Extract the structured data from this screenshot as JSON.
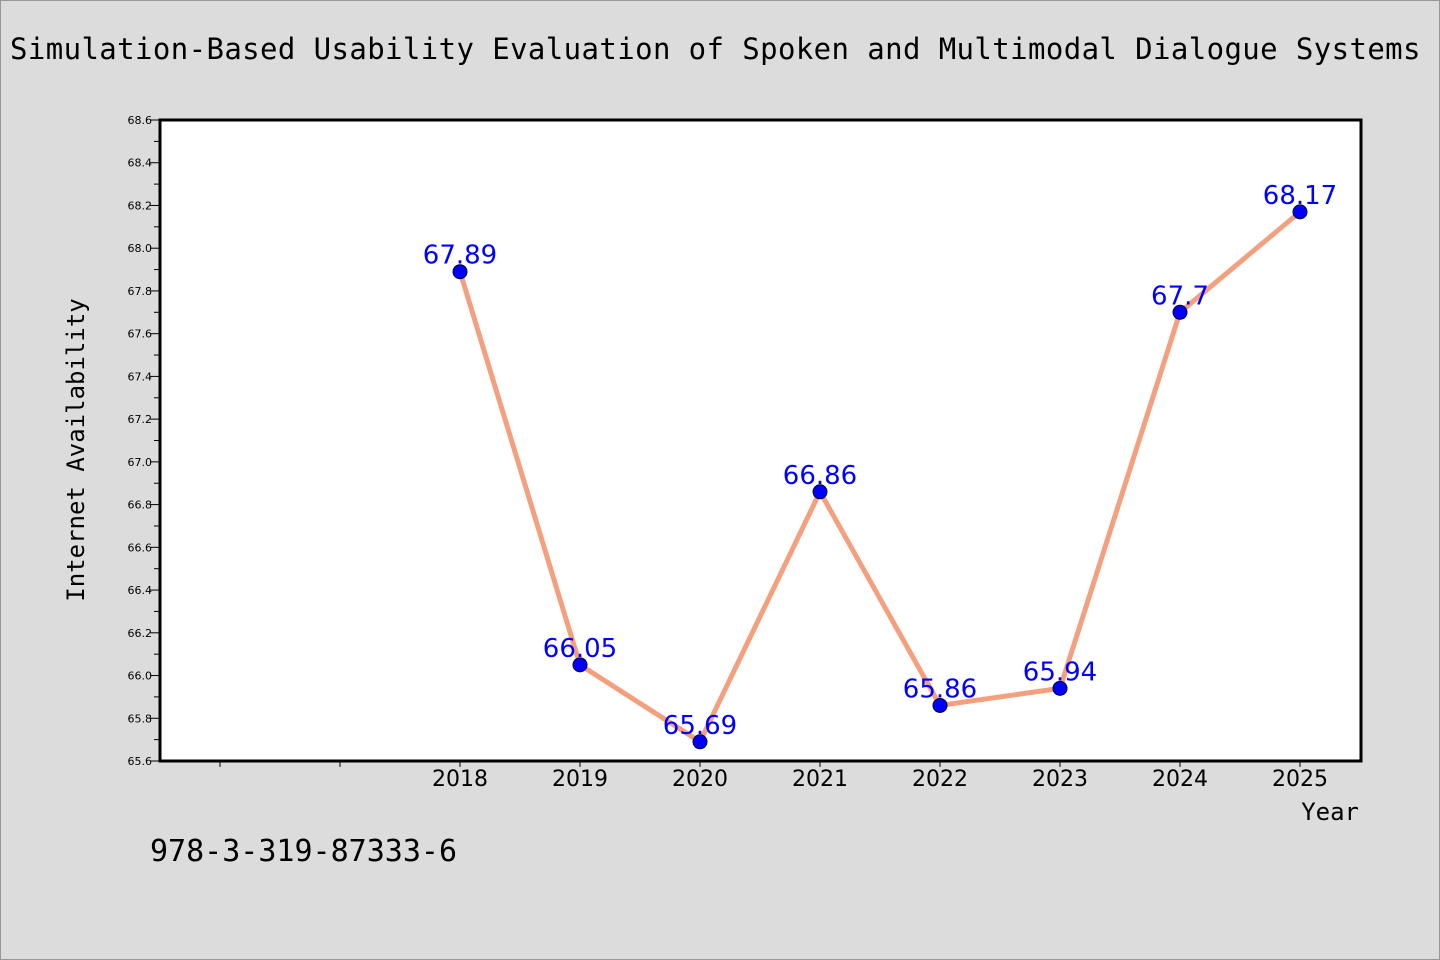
{
  "chart_data": {
    "type": "line",
    "title": "Simulation-Based Usability Evaluation of Spoken and Multimodal Dialogue Systems",
    "xlabel": "Year",
    "ylabel": "Internet Availability",
    "x": [
      "2018",
      "2019",
      "2020",
      "2021",
      "2022",
      "2023",
      "2024",
      "2025"
    ],
    "series": [
      {
        "values": [
          67.89,
          66.05,
          65.69,
          66.86,
          65.86,
          65.94,
          67.7,
          68.17
        ]
      }
    ],
    "data_labels": [
      "67.89",
      "66.05",
      "65.69",
      "66.86",
      "65.86",
      "65.94",
      "67.7",
      "68.17"
    ],
    "ylim": [
      65.6,
      68.6
    ],
    "yticks": [
      "65.6",
      "65.8",
      "66.0",
      "66.2",
      "66.4",
      "66.6",
      "66.8",
      "67.0",
      "67.2",
      "67.4",
      "67.6",
      "67.8",
      "68.0",
      "68.2",
      "68.4",
      "68.6"
    ],
    "grid": false,
    "colors": {
      "line": "#f4a07e",
      "marker": "#0000ff",
      "label": "#0000ff",
      "background": "#dcdcdc",
      "plot": "#ffffff"
    }
  },
  "footer": {
    "isbn": "978-3-319-87333-6"
  }
}
